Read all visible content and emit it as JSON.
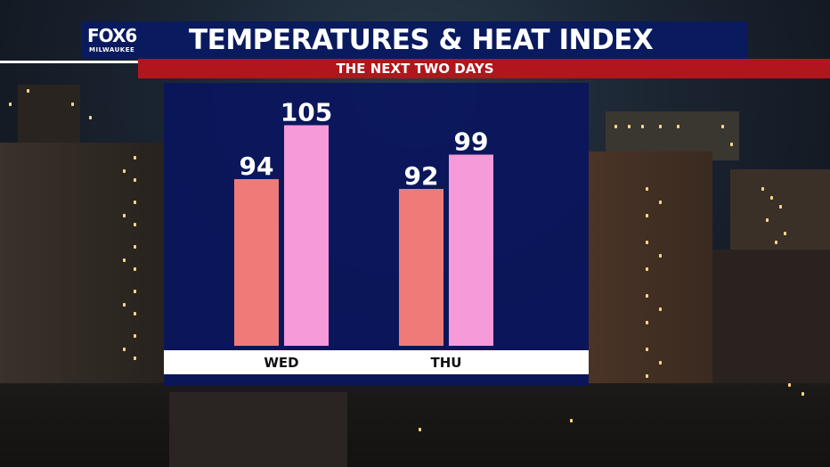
{
  "header": {
    "logo_main": "FOX6",
    "logo_sub": "MILWAUKEE",
    "title": "TEMPERATURES & HEAT INDEX",
    "subtitle": "THE NEXT TWO DAYS"
  },
  "colors": {
    "header_bg": "#0a1a5e",
    "subtitle_bar": "#b0161b",
    "panel_bg": "#0a165c",
    "temperature_bar": "#ee7b78",
    "heat_index_bar": "#f79ad9"
  },
  "chart_data": {
    "type": "bar",
    "title": "TEMPERATURES & HEAT INDEX",
    "subtitle": "THE NEXT TWO DAYS",
    "categories": [
      "WED",
      "THU"
    ],
    "series": [
      {
        "values": [
          94,
          92
        ],
        "color": "#ee7b78"
      },
      {
        "values": [
          105,
          99
        ],
        "color": "#f79ad9"
      }
    ],
    "ylim": [
      60,
      110
    ],
    "grid": false,
    "legend": "none"
  }
}
